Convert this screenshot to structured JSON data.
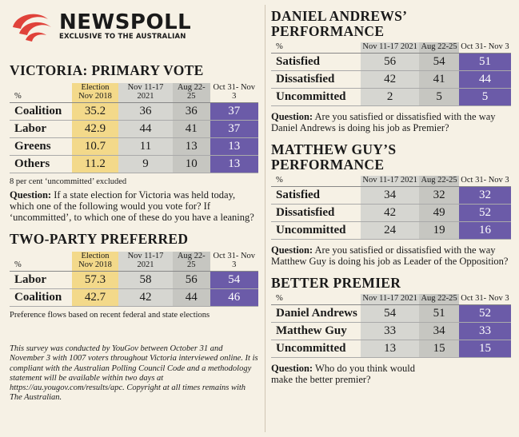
{
  "logo": {
    "name": "NEWSPOLL",
    "tagline": "EXCLUSIVE TO THE AUSTRALIAN"
  },
  "primary_vote": {
    "title": "VICTORIA: PRIMARY VOTE",
    "pct": "%",
    "headers": [
      "Election Nov 2018",
      "Nov 11-17 2021",
      "Aug 22-25",
      "Oct 31- Nov 3"
    ],
    "rows": [
      {
        "label": "Coalition",
        "values": [
          "35.2",
          "36",
          "36",
          "37"
        ]
      },
      {
        "label": "Labor",
        "values": [
          "42.9",
          "44",
          "41",
          "37"
        ]
      },
      {
        "label": "Greens",
        "values": [
          "10.7",
          "11",
          "13",
          "13"
        ]
      },
      {
        "label": "Others",
        "values": [
          "11.2",
          "9",
          "10",
          "13"
        ]
      }
    ],
    "note": "8 per cent ‘uncommitted’ excluded",
    "question_label": "Question:",
    "question": "If a state election for Victoria was held today, which one of the following would you vote for? If ‘uncommitted’, to which one of these do you have a leaning?"
  },
  "tpp": {
    "title": "TWO-PARTY PREFERRED",
    "pct": "%",
    "headers": [
      "Election Nov 2018",
      "Nov 11-17 2021",
      "Aug 22-25",
      "Oct 31- Nov 3"
    ],
    "rows": [
      {
        "label": "Labor",
        "values": [
          "57.3",
          "58",
          "56",
          "54"
        ]
      },
      {
        "label": "Coalition",
        "values": [
          "42.7",
          "42",
          "44",
          "46"
        ]
      }
    ],
    "note": "Preference flows based on recent federal and state elections"
  },
  "footnote": "This survey was conducted by YouGov between October 31 and November 3 with 1007 voters throughout Victoria interviewed online. It is compliant with the Australian Polling Council Code and a methodology statement will be available within two days at https://au.yougov.com/results/apc. Copyright at all times remains with The Australian.",
  "andrews": {
    "title_l1": "DANIEL ANDREWS’",
    "title_l2": "PERFORMANCE",
    "pct": "%",
    "headers": [
      "Nov 11-17 2021",
      "Aug 22-25",
      "Oct 31- Nov 3"
    ],
    "rows": [
      {
        "label": "Satisfied",
        "values": [
          "56",
          "54",
          "51"
        ]
      },
      {
        "label": "Dissatisfied",
        "values": [
          "42",
          "41",
          "44"
        ]
      },
      {
        "label": "Uncommitted",
        "values": [
          "2",
          "5",
          "5"
        ]
      }
    ],
    "question_label": "Question:",
    "question": "Are you satisfied or dissatisfied with the way Daniel Andrews is doing his job as Premier?"
  },
  "guy": {
    "title": "MATTHEW GUY’S PERFORMANCE",
    "pct": "%",
    "headers": [
      "Nov 11-17 2021",
      "Aug 22-25",
      "Oct 31- Nov 3"
    ],
    "rows": [
      {
        "label": "Satisfied",
        "values": [
          "34",
          "32",
          "32"
        ]
      },
      {
        "label": "Dissatisfied",
        "values": [
          "42",
          "49",
          "52"
        ]
      },
      {
        "label": "Uncommitted",
        "values": [
          "24",
          "19",
          "16"
        ]
      }
    ],
    "question_label": "Question:",
    "question": "Are you satisfied or dissatisfied with the way Matthew Guy is doing his job as Leader of the Opposition?"
  },
  "better": {
    "title": "BETTER PREMIER",
    "pct": "%",
    "headers": [
      "Nov 11-17 2021",
      "Aug 22-25",
      "Oct 31- Nov 3"
    ],
    "rows": [
      {
        "label": "Daniel Andrews",
        "values": [
          "54",
          "51",
          "52"
        ]
      },
      {
        "label": "Matthew Guy",
        "values": [
          "33",
          "34",
          "33"
        ]
      },
      {
        "label": "Uncommitted",
        "values": [
          "13",
          "15",
          "15"
        ]
      }
    ],
    "question_label": "Question:",
    "question": "Who do you think would make the better premier?"
  },
  "colors": {
    "election": "#f3d98a",
    "purple": "#6b5ba8",
    "grey_light": "#d6d6d1",
    "grey_dark": "#c6c6c1",
    "logo_red": "#e0423a"
  }
}
